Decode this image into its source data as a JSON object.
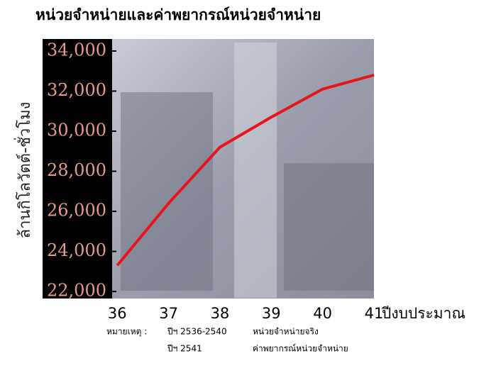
{
  "chart_data": {
    "type": "line",
    "title": "หน่วยจำหน่ายและค่าพยากรณ์หน่วยจำหน่าย",
    "y_label": "ล้านกิโลวัตต์-ชั่วโมง",
    "x_label": "ปีงบประมาณ",
    "x": [
      36,
      37,
      38,
      39,
      40,
      41
    ],
    "values": [
      23300,
      26400,
      29200,
      30700,
      32100,
      32800
    ],
    "color": "#e8141c",
    "xlim": [
      35.9,
      41
    ],
    "xticks": [
      36,
      37,
      38,
      39,
      40,
      41
    ],
    "ylim": [
      21650,
      34600
    ],
    "yticks": [
      {
        "value": 22000,
        "label": "22,000"
      },
      {
        "value": 24000,
        "label": "24,000"
      },
      {
        "value": 26000,
        "label": "26,000"
      },
      {
        "value": 28000,
        "label": "28,000"
      },
      {
        "value": 30000,
        "label": "30,000"
      },
      {
        "value": 32000,
        "label": "32,000"
      },
      {
        "value": 34000,
        "label": "34,000"
      }
    ],
    "grid": false
  },
  "note": {
    "label": "หมายเหตุ :",
    "rows": [
      [
        "ปีฯ 2536-2540",
        "หน่วยจำหน่ายจริง"
      ],
      [
        "ปีฯ 2541",
        "ค่าพยากรณ์หน่วยจำหน่าย"
      ]
    ]
  }
}
